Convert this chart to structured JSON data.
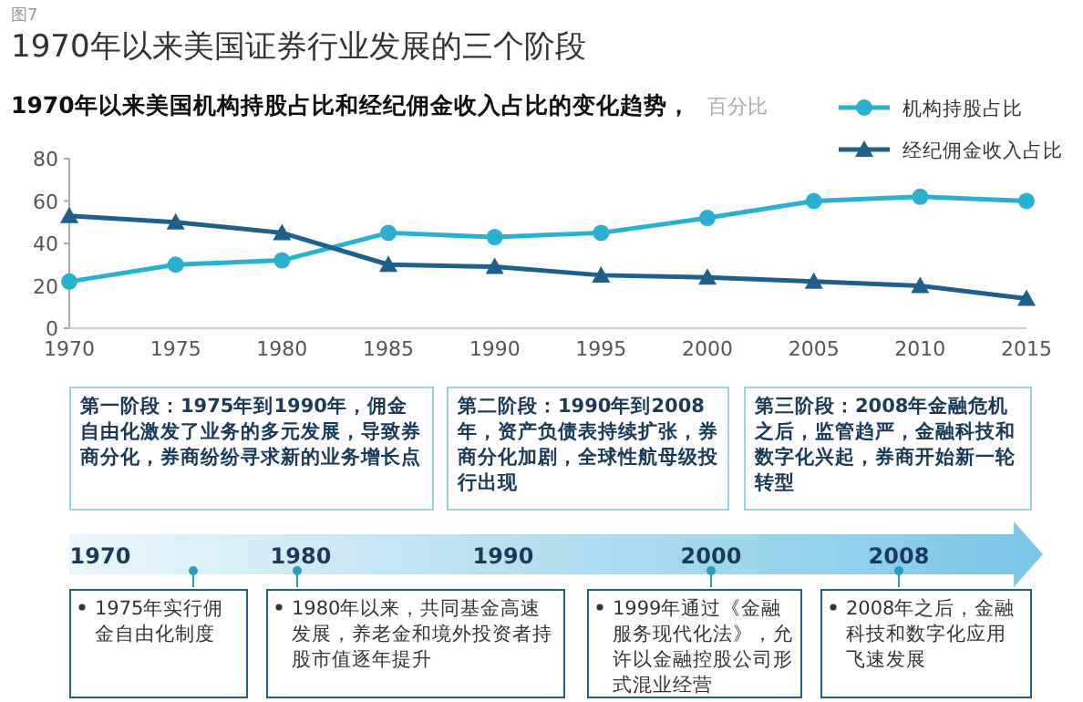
{
  "chart_data": {
    "type": "line",
    "title": "1970年以来美国证券行业发展的三个阶段",
    "subtitle": "1970年以来美国机构持股占比和经纪佣金收入占比的变化趋势，",
    "ylabel": "百分比",
    "x": [
      1970,
      1975,
      1980,
      1985,
      1990,
      1995,
      2000,
      2005,
      2010,
      2015
    ],
    "series": [
      {
        "name": "机构持股占比",
        "color": "#2bb0d0",
        "marker": "circle",
        "values": [
          22,
          30,
          32,
          45,
          43,
          45,
          52,
          60,
          62,
          60
        ]
      },
      {
        "name": "经纪佣金收入占比",
        "color": "#1f5f8b",
        "marker": "triangle",
        "values": [
          53,
          50,
          45,
          30,
          29,
          25,
          24,
          22,
          20,
          14
        ]
      }
    ],
    "xlim": [
      1970,
      2015
    ],
    "xticks": [
      1970,
      1975,
      1980,
      1985,
      1990,
      1995,
      2000,
      2005,
      2010,
      2015
    ],
    "ylim": [
      0,
      80
    ],
    "yticks": [
      0,
      20,
      40,
      60,
      80
    ],
    "grid": false,
    "legend": "top right",
    "annotations": [
      "图7",
      "第一阶段：1975年到1990年，佣金自由化激发了业务的多元发展，导致券商分化，券商纷纷寻求新的业务增长点",
      "第二阶段：1990年到2008年，资产负债表持续扩张，券商分化加剧，全球性航母级投行出现",
      "第三阶段：2008年金融危机之后，监管趋严，金融科技和数字化兴起，券商开始新一轮转型",
      "1970",
      "1980",
      "1990",
      "2000",
      "2008",
      "1975年实行佣金自由化制度",
      "1980年以来，共同基金高速发展，养老金和境外投资者持股市值逐年提升",
      "1999年通过《金融服务现代化法》，允许以金融控股公司形式混业经营",
      "2008年之后，金融科技和数字化应用飞速发展"
    ]
  }
}
